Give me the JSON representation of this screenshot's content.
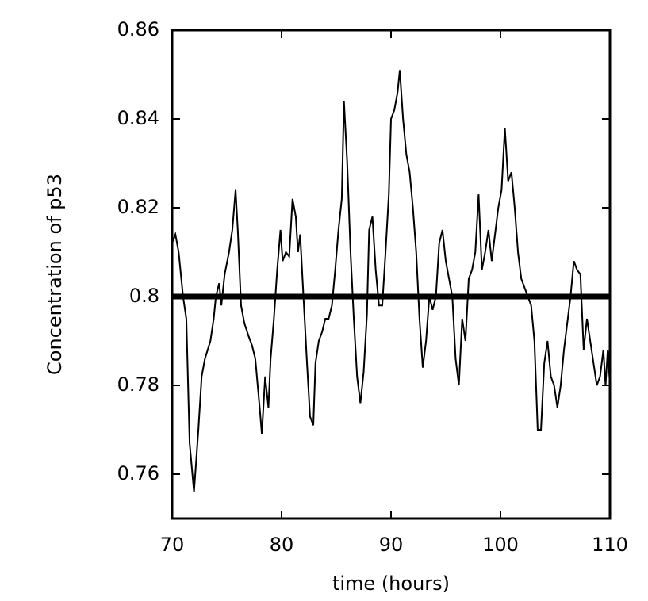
{
  "chart_data": {
    "type": "line",
    "xlabel": "time (hours)",
    "ylabel": "Concentration of p53",
    "xlim": [
      70,
      110
    ],
    "ylim": [
      0.75,
      0.86
    ],
    "xticks": [
      70,
      80,
      90,
      100,
      110
    ],
    "yticks": [
      0.76,
      0.78,
      0.8,
      0.82,
      0.84,
      0.86
    ],
    "reference_line": 0.8,
    "color": "#000000",
    "x": [
      70,
      70.3,
      70.6,
      71,
      71.3,
      71.6,
      72,
      72.4,
      72.7,
      73,
      73.5,
      73.8,
      74,
      74.3,
      74.5,
      74.8,
      75.2,
      75.5,
      75.8,
      76,
      76.3,
      76.6,
      77,
      77.3,
      77.6,
      78,
      78.2,
      78.5,
      78.8,
      79,
      79.3,
      79.6,
      79.9,
      80.1,
      80.4,
      80.7,
      81,
      81.3,
      81.5,
      81.7,
      82,
      82.3,
      82.6,
      82.9,
      83.1,
      83.4,
      83.7,
      84,
      84.3,
      84.6,
      84.9,
      85.2,
      85.5,
      85.7,
      86,
      86.3,
      86.6,
      86.9,
      87.2,
      87.5,
      87.8,
      88,
      88.3,
      88.6,
      88.9,
      89.2,
      89.5,
      89.8,
      90,
      90.3,
      90.6,
      90.8,
      91.1,
      91.4,
      91.7,
      92,
      92.3,
      92.6,
      92.9,
      93.2,
      93.5,
      93.8,
      94.1,
      94.4,
      94.7,
      95,
      95.3,
      95.6,
      95.9,
      96.2,
      96.5,
      96.8,
      97.1,
      97.4,
      97.7,
      98,
      98.3,
      98.6,
      98.9,
      99.2,
      99.5,
      99.8,
      100.1,
      100.4,
      100.7,
      101,
      101.3,
      101.6,
      101.9,
      102.2,
      102.5,
      102.8,
      103.1,
      103.4,
      103.7,
      104,
      104.3,
      104.6,
      104.9,
      105.2,
      105.5,
      105.8,
      106.1,
      106.4,
      106.7,
      107,
      107.3,
      107.6,
      107.9,
      108.2,
      108.5,
      108.8,
      109.1,
      109.4,
      109.6,
      109.8,
      110
    ],
    "values": [
      0.812,
      0.814,
      0.81,
      0.8,
      0.795,
      0.767,
      0.756,
      0.77,
      0.782,
      0.786,
      0.79,
      0.795,
      0.8,
      0.803,
      0.798,
      0.805,
      0.81,
      0.815,
      0.824,
      0.815,
      0.798,
      0.794,
      0.791,
      0.789,
      0.786,
      0.775,
      0.769,
      0.782,
      0.775,
      0.786,
      0.795,
      0.806,
      0.815,
      0.808,
      0.81,
      0.809,
      0.822,
      0.818,
      0.81,
      0.814,
      0.8,
      0.786,
      0.773,
      0.771,
      0.785,
      0.79,
      0.792,
      0.795,
      0.795,
      0.798,
      0.806,
      0.815,
      0.822,
      0.844,
      0.83,
      0.81,
      0.795,
      0.782,
      0.776,
      0.783,
      0.796,
      0.815,
      0.818,
      0.806,
      0.798,
      0.798,
      0.81,
      0.823,
      0.84,
      0.842,
      0.846,
      0.851,
      0.84,
      0.832,
      0.828,
      0.82,
      0.81,
      0.795,
      0.784,
      0.79,
      0.8,
      0.797,
      0.8,
      0.812,
      0.815,
      0.808,
      0.804,
      0.8,
      0.786,
      0.78,
      0.795,
      0.79,
      0.804,
      0.806,
      0.81,
      0.823,
      0.806,
      0.81,
      0.815,
      0.808,
      0.814,
      0.82,
      0.824,
      0.838,
      0.826,
      0.828,
      0.82,
      0.81,
      0.804,
      0.802,
      0.8,
      0.798,
      0.79,
      0.77,
      0.77,
      0.785,
      0.79,
      0.782,
      0.78,
      0.775,
      0.78,
      0.788,
      0.794,
      0.8,
      0.808,
      0.806,
      0.805,
      0.788,
      0.795,
      0.79,
      0.785,
      0.78,
      0.782,
      0.788,
      0.78,
      0.788,
      0.78
    ]
  }
}
